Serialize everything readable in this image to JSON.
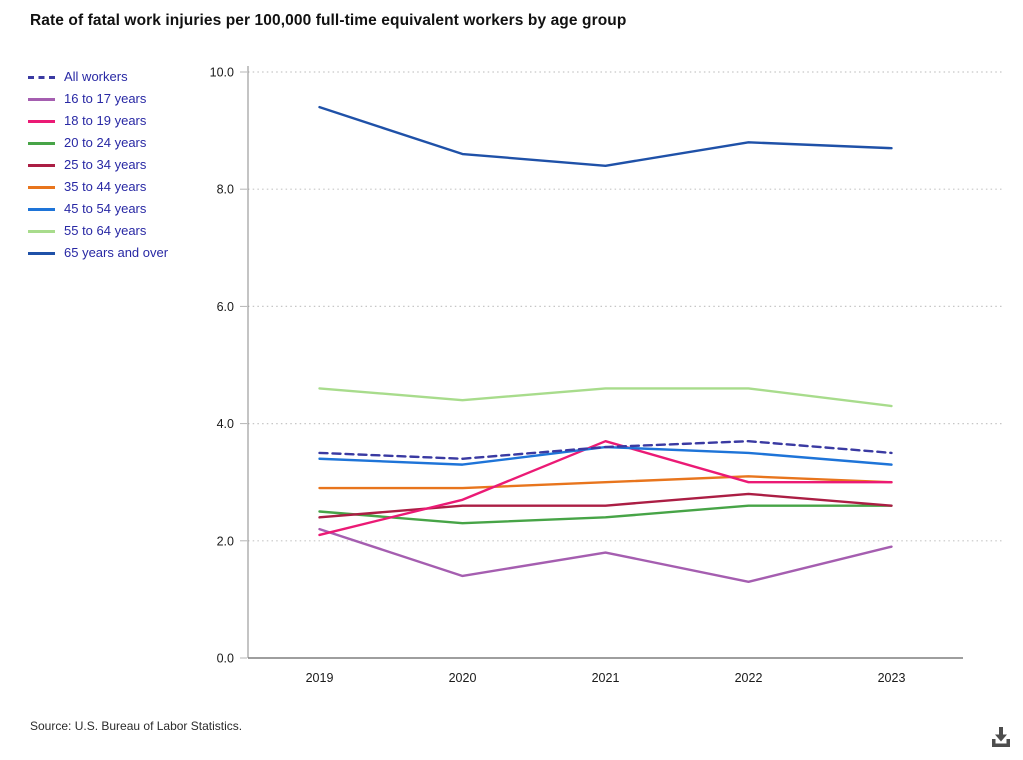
{
  "title": "Rate of fatal work injuries per 100,000 full-time equivalent workers by age group",
  "source": "Source: U.S. Bureau of Labor Statistics.",
  "icons": {
    "download": "download-icon"
  },
  "chart_data": {
    "type": "line",
    "x": [
      "2019",
      "2020",
      "2021",
      "2022",
      "2023"
    ],
    "series": [
      {
        "name": "All workers",
        "color": "#3A3AA2",
        "dash": true,
        "values": [
          3.5,
          3.4,
          3.6,
          3.7,
          3.5
        ]
      },
      {
        "name": "16 to 17 years",
        "color": "#A55EB0",
        "dash": false,
        "values": [
          2.2,
          1.4,
          1.8,
          1.3,
          1.9
        ]
      },
      {
        "name": "18 to 19 years",
        "color": "#EB1A75",
        "dash": false,
        "values": [
          2.1,
          2.7,
          3.7,
          3.0,
          3.0
        ]
      },
      {
        "name": "20 to 24 years",
        "color": "#47A447",
        "dash": false,
        "values": [
          2.5,
          2.3,
          2.4,
          2.6,
          2.6
        ]
      },
      {
        "name": "25 to 34 years",
        "color": "#AB1E44",
        "dash": false,
        "values": [
          2.4,
          2.6,
          2.6,
          2.8,
          2.6
        ]
      },
      {
        "name": "35 to 44 years",
        "color": "#E8751D",
        "dash": false,
        "values": [
          2.9,
          2.9,
          3.0,
          3.1,
          3.0
        ]
      },
      {
        "name": "45 to 54 years",
        "color": "#1E74D8",
        "dash": false,
        "values": [
          3.4,
          3.3,
          3.6,
          3.5,
          3.3
        ]
      },
      {
        "name": "55 to 64 years",
        "color": "#A8DC8C",
        "dash": false,
        "values": [
          4.6,
          4.4,
          4.6,
          4.6,
          4.3
        ]
      },
      {
        "name": "65 years and over",
        "color": "#1F51A8",
        "dash": false,
        "values": [
          9.4,
          8.6,
          8.4,
          8.8,
          8.7
        ]
      }
    ],
    "ylim": [
      0,
      10
    ],
    "yticks": [
      0,
      2,
      4,
      6,
      8,
      10
    ],
    "ytick_labels": [
      "0.0",
      "2.0",
      "4.0",
      "6.0",
      "8.0",
      "10.0"
    ],
    "xlabel": "",
    "ylabel": "",
    "grid": "horizontal-dotted",
    "legend_position": "top-left"
  }
}
